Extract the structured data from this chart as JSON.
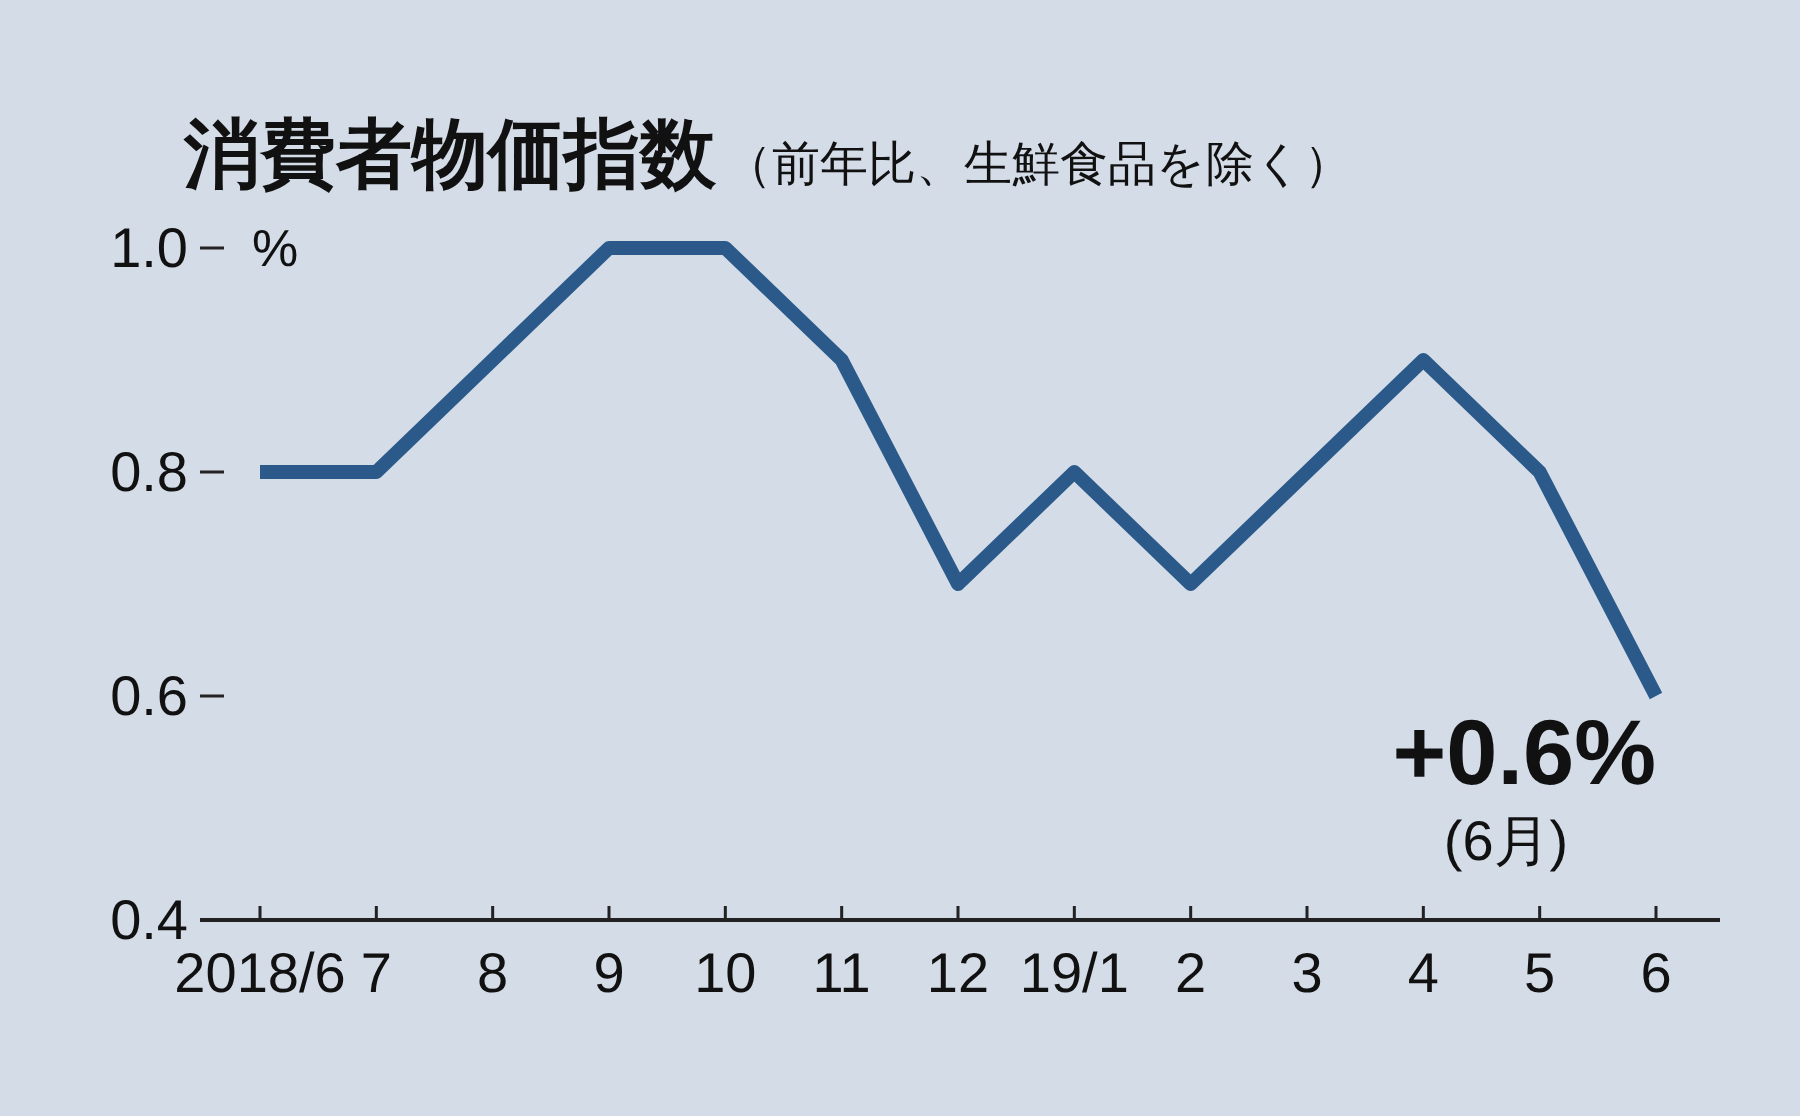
{
  "chart_data": {
    "type": "line",
    "title": "消費者物価指数",
    "subtitle": "（前年比、生鮮食品を除く）",
    "ylabel": "%",
    "categories": [
      "2018/6",
      "7",
      "8",
      "9",
      "10",
      "11",
      "12",
      "19/1",
      "2",
      "3",
      "4",
      "5",
      "6"
    ],
    "series": [
      {
        "color": "#2b5a8a",
        "values": [
          0.8,
          0.8,
          0.9,
          1.0,
          1.0,
          0.9,
          0.7,
          0.8,
          0.7,
          0.8,
          0.9,
          0.8,
          0.6
        ]
      }
    ],
    "ylim": [
      0.4,
      1.0
    ],
    "yticks": [
      {
        "value": 0.4,
        "label": "0.4"
      },
      {
        "value": 0.6,
        "label": "0.6"
      },
      {
        "value": 0.8,
        "label": "0.8"
      },
      {
        "value": 1.0,
        "label": "1.0"
      }
    ],
    "grid": false,
    "marker": "none",
    "line_style": "solid",
    "annotations": [
      {
        "text": "+0.6%",
        "x": "6",
        "y": 0.6
      },
      "(6月)"
    ]
  }
}
